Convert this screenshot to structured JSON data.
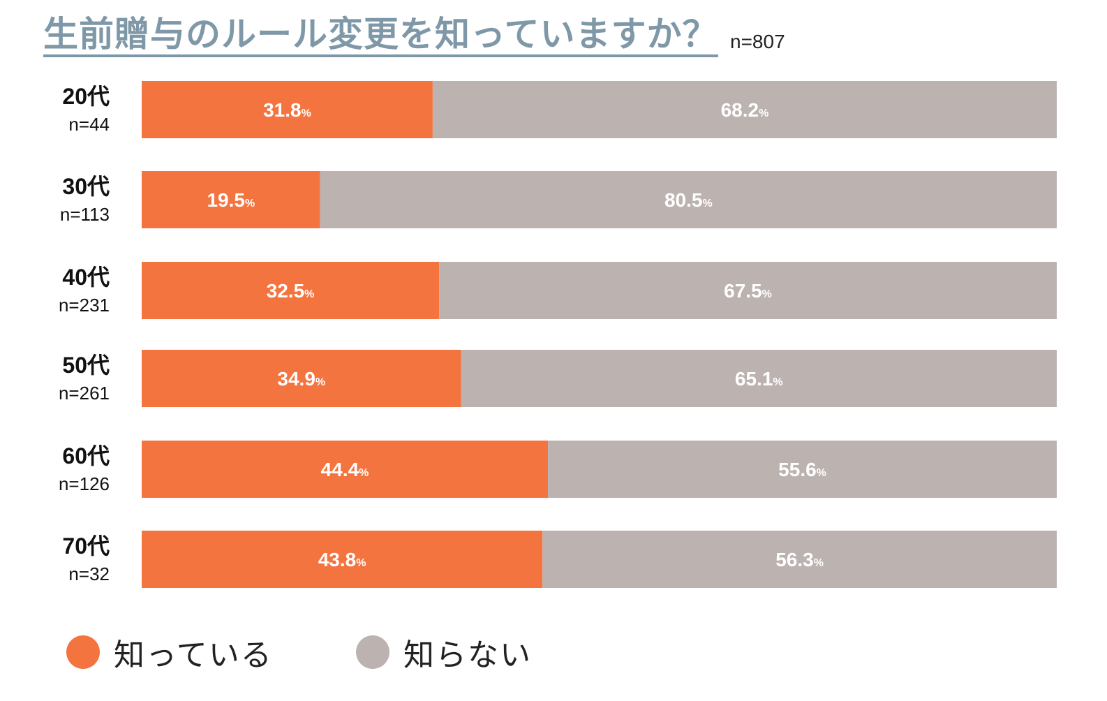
{
  "title": "生前贈与のルール変更を知っていますか？",
  "total_n": "n=807",
  "colors": {
    "know": "#f47440",
    "dont_know": "#bcb3b1",
    "title": "#7f98a8"
  },
  "chart_data": {
    "type": "bar",
    "orientation": "horizontal",
    "stacked": true,
    "title": "生前贈与のルール変更を知っていますか？",
    "categories": [
      "20代",
      "30代",
      "40代",
      "50代",
      "60代",
      "70代"
    ],
    "sample_sizes": [
      "n=44",
      "n=113",
      "n=231",
      "n=261",
      "n=126",
      "n=32"
    ],
    "series": [
      {
        "name": "知っている",
        "values": [
          31.8,
          19.5,
          32.5,
          34.9,
          44.4,
          43.8
        ]
      },
      {
        "name": "知らない",
        "values": [
          68.2,
          80.5,
          67.5,
          65.1,
          55.6,
          56.3
        ]
      }
    ],
    "unit": "%",
    "xlim": [
      0,
      100
    ],
    "legend_position": "bottom-left"
  }
}
